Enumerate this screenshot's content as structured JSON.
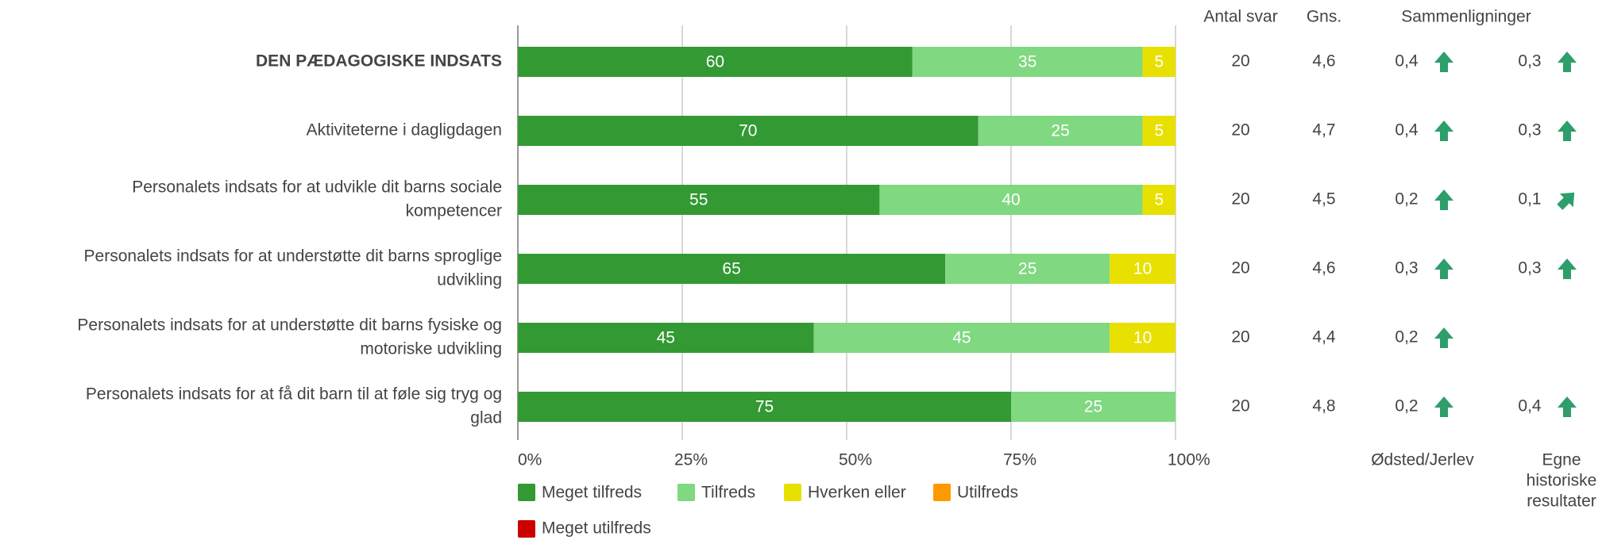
{
  "chart_data": {
    "type": "bar",
    "orientation": "horizontal",
    "stacked": true,
    "categories": [
      "DEN PÆDAGOGISKE INDSATS",
      "Aktiviteterne i dagligdagen",
      "Personalets indsats for at udvikle dit barns sociale kompetencer",
      "Personalets indsats for at understøtte dit barns sproglige udvikling",
      "Personalets indsats for at understøtte dit barns fysiske og motoriske udvikling",
      "Personalets indsats for at få dit barn til at føle sig tryg og glad"
    ],
    "category_lines": [
      [
        "DEN PÆDAGOGISKE INDSATS"
      ],
      [
        "Aktiviteterne i dagligdagen"
      ],
      [
        "Personalets indsats for at udvikle dit barns sociale",
        "kompetencer"
      ],
      [
        "Personalets indsats for at understøtte dit barns sproglige",
        "udvikling"
      ],
      [
        "Personalets indsats for at understøtte dit barns fysiske og",
        "motoriske udvikling"
      ],
      [
        "Personalets indsats for at få dit barn til at føle sig tryg og",
        "glad"
      ]
    ],
    "series": [
      {
        "name": "Meget tilfreds",
        "color": "#339933",
        "label_color": "#ffffff",
        "values": [
          60,
          70,
          55,
          65,
          45,
          75
        ]
      },
      {
        "name": "Tilfreds",
        "color": "#80d880",
        "label_color": "#ffffff",
        "values": [
          35,
          25,
          40,
          25,
          45,
          25
        ]
      },
      {
        "name": "Hverken eller",
        "color": "#e8e000",
        "label_color": "#ffffff",
        "values": [
          5,
          5,
          5,
          10,
          10,
          0
        ]
      },
      {
        "name": "Utilfreds",
        "color": "#ff9900",
        "label_color": "#ffffff",
        "values": [
          0,
          0,
          0,
          0,
          0,
          0
        ]
      },
      {
        "name": "Meget utilfreds",
        "color": "#cc0000",
        "label_color": "#ffffff",
        "values": [
          0,
          0,
          0,
          0,
          0,
          0
        ]
      }
    ],
    "xlim": [
      0,
      100
    ],
    "xticks": [
      "0%",
      "25%",
      "50%",
      "75%",
      "100%"
    ],
    "grid": true,
    "legend_position": "bottom-left",
    "columns": {
      "antal_header": "Antal svar",
      "gns_header": "Gns.",
      "comparisons_header": "Sammenligninger",
      "comparison1_footer": "Ødsted/Jerlev",
      "comparison2_footer_lines": [
        "Egne",
        "historiske",
        "resultater"
      ],
      "antal_svar": [
        "20",
        "20",
        "20",
        "20",
        "20",
        "20"
      ],
      "gns": [
        "4,6",
        "4,7",
        "4,5",
        "4,6",
        "4,4",
        "4,8"
      ],
      "comparison1": [
        {
          "value": "0,4",
          "icon": "arrow-up-icon"
        },
        {
          "value": "0,4",
          "icon": "arrow-up-icon"
        },
        {
          "value": "0,2",
          "icon": "arrow-up-icon"
        },
        {
          "value": "0,3",
          "icon": "arrow-up-icon"
        },
        {
          "value": "0,2",
          "icon": "arrow-up-icon"
        },
        {
          "value": "0,2",
          "icon": "arrow-up-icon"
        }
      ],
      "comparison2": [
        {
          "value": "0,3",
          "icon": "arrow-up-icon"
        },
        {
          "value": "0,3",
          "icon": "arrow-up-icon"
        },
        {
          "value": "0,1",
          "icon": "arrow-up-right-icon"
        },
        {
          "value": "0,3",
          "icon": "arrow-up-icon"
        },
        null,
        {
          "value": "0,4",
          "icon": "arrow-up-icon"
        }
      ]
    },
    "colors": {
      "text": "#444444",
      "axis": "#999999",
      "grid": "#cccccc",
      "arrow": "#2e9e6b"
    }
  }
}
